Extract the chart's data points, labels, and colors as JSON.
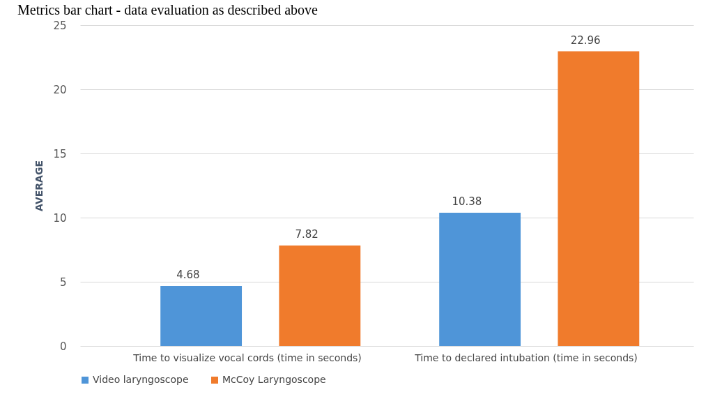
{
  "chart_data": {
    "type": "bar",
    "title": "Metrics bar chart - data evaluation as described above",
    "ylabel": "AVERAGE",
    "categories": [
      "Time to visualize vocal cords (time in seconds)",
      "Time to declared intubation (time in seconds)"
    ],
    "series": [
      {
        "name": "Video laryngoscope",
        "color": "#4f95d8",
        "values": [
          4.68,
          10.38
        ]
      },
      {
        "name": "McCoy Laryngoscope",
        "color": "#f07b2c",
        "values": [
          7.82,
          22.96
        ]
      }
    ],
    "ylim": [
      0,
      25
    ],
    "yticks": [
      0,
      5,
      10,
      15,
      20,
      25
    ],
    "grid": "y",
    "legend": "bottom",
    "data_labels": true
  }
}
